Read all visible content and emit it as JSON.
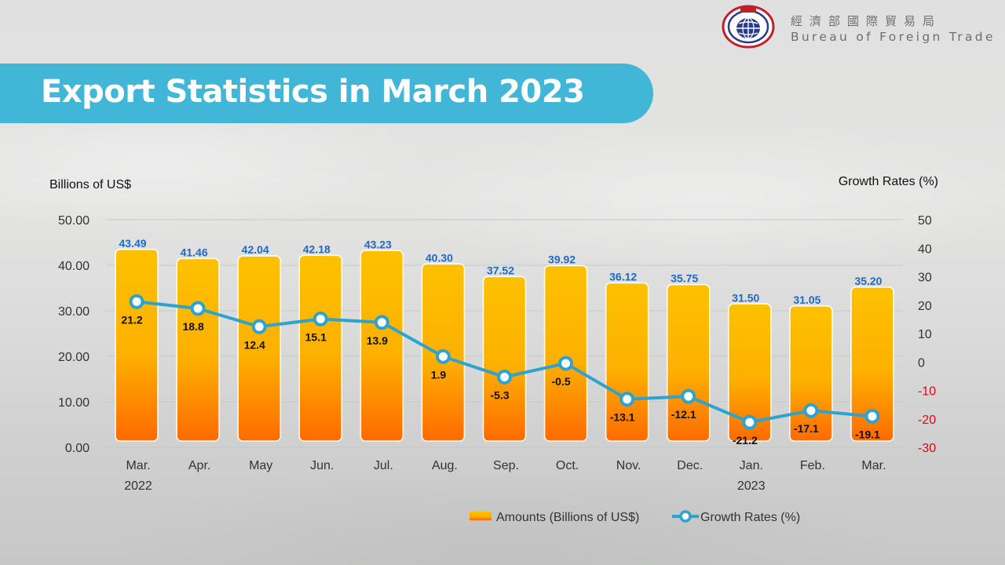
{
  "header": {
    "agency_zh": "經濟部國際貿易局",
    "agency_en": "Bureau of Foreign Trade",
    "title": "Export Statistics in March 2023"
  },
  "colors": {
    "banner": "#42b6d6",
    "bar_top": "#fdc100",
    "bar_bottom": "#fe6a00",
    "line": "#2ea3cf",
    "bar_label": "#1f69c3",
    "negative_tick": "#e6001a"
  },
  "chart_data": {
    "type": "bar",
    "left_axis_title": "Billions of US$",
    "right_axis_title": "Growth Rates (%)",
    "ylim_left": [
      0,
      50
    ],
    "ylim_right": [
      -30,
      50
    ],
    "left_ticks": [
      "0.00",
      "10.00",
      "20.00",
      "30.00",
      "40.00",
      "50.00"
    ],
    "right_ticks": [
      "-30",
      "-20",
      "-10",
      "0",
      "10",
      "20",
      "30",
      "40",
      "50"
    ],
    "grid": true,
    "legend_position": "bottom",
    "categories": [
      "Mar.",
      "Apr.",
      "May",
      "Jun.",
      "Jul.",
      "Aug.",
      "Sep.",
      "Oct.",
      "Nov.",
      "Dec.",
      "Jan.",
      "Feb.",
      "Mar."
    ],
    "year_labels": [
      "2022",
      "",
      "",
      "",
      "",
      "",
      "",
      "",
      "",
      "",
      "2023",
      "",
      ""
    ],
    "series": [
      {
        "name": "Amounts (Billions of US$)",
        "type": "bar",
        "axis": "left",
        "values": [
          43.49,
          41.46,
          42.04,
          42.18,
          43.23,
          40.3,
          37.52,
          39.92,
          36.12,
          35.75,
          31.5,
          31.05,
          35.2
        ],
        "labels": [
          "43.49",
          "41.46",
          "42.04",
          "42.18",
          "43.23",
          "40.30",
          "37.52",
          "39.92",
          "36.12",
          "35.75",
          "31.50",
          "31.05",
          "35.20"
        ]
      },
      {
        "name": "Growth Rates (%)",
        "type": "line",
        "axis": "right",
        "values": [
          21.2,
          18.8,
          12.4,
          15.1,
          13.9,
          1.9,
          -5.3,
          -0.5,
          -13.1,
          -12.1,
          -21.2,
          -17.1,
          -19.1
        ],
        "labels": [
          "21.2",
          "18.8",
          "12.4",
          "15.1",
          "13.9",
          "1.9",
          "-5.3",
          "-0.5",
          "-13.1",
          "-12.1",
          "-21.2",
          "-17.1",
          "-19.1"
        ]
      }
    ]
  }
}
